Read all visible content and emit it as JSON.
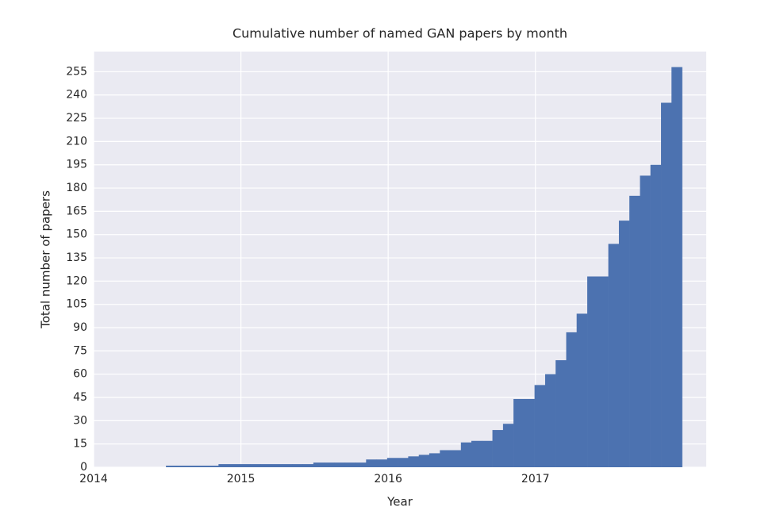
{
  "chart_data": {
    "type": "histogram",
    "title": "Cumulative number of named GAN papers by month",
    "x_label": "Year",
    "y_label": "Total number of papers",
    "bins": [
      2014.491,
      2014.562,
      2014.634,
      2014.705,
      2014.777,
      2014.848,
      2014.92,
      2014.991,
      2015.063,
      2015.134,
      2015.206,
      2015.278,
      2015.349,
      2015.421,
      2015.492,
      2015.564,
      2015.635,
      2015.707,
      2015.778,
      2015.85,
      2015.921,
      2015.993,
      2016.064,
      2016.136,
      2016.208,
      2016.279,
      2016.351,
      2016.422,
      2016.494,
      2016.565,
      2016.637,
      2016.708,
      2016.78,
      2016.851,
      2016.923,
      2016.994,
      2017.066,
      2017.137,
      2017.209,
      2017.28,
      2017.352,
      2017.423,
      2017.495,
      2017.567,
      2017.638,
      2017.71,
      2017.781,
      2017.853,
      2017.924,
      2017.996
    ],
    "values": [
      1,
      1,
      1,
      1,
      1,
      2,
      2,
      2,
      2,
      2,
      2,
      2,
      2,
      2,
      3,
      3,
      3,
      3,
      3,
      5,
      5,
      6,
      6,
      7,
      8,
      9,
      11,
      11,
      16,
      17,
      17,
      24,
      28,
      44,
      44,
      53,
      60,
      69,
      87,
      99,
      123,
      123,
      144,
      159,
      175,
      188,
      195,
      235,
      258
    ],
    "color": "#4c72b0",
    "xlim": [
      2014,
      2018.16
    ],
    "xticks": [
      2014,
      2015,
      2016,
      2017
    ],
    "ylim": [
      0,
      268
    ],
    "yticks": [
      0,
      15,
      30,
      45,
      60,
      75,
      90,
      105,
      120,
      135,
      150,
      165,
      180,
      195,
      210,
      225,
      240,
      255
    ],
    "grid": true
  }
}
